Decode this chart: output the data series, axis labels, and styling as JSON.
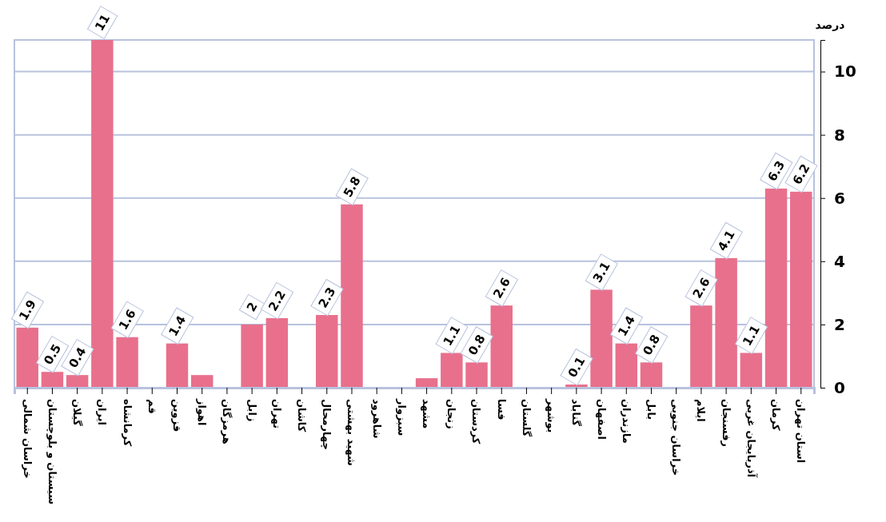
{
  "chart_data": {
    "type": "bar",
    "ylabel": "درصد",
    "categories": [
      "خراسان شمالی",
      "سیستان و بلوچستان",
      "گیلان",
      "ایران",
      "کرمانشاه",
      "قم",
      "قزوین",
      "اهواز",
      "هرمزگان",
      "زابل",
      "تهران",
      "کاشان",
      "چهارمحال",
      "شهید بهشتی",
      "شاهرود",
      "سبزوار",
      "مشهد",
      "زنجان",
      "کردستان",
      "فسا",
      "گلستان",
      "بوشهر",
      "گناباد",
      "اصفهان",
      "مازندران",
      "بابل",
      "خراسان جنوبی",
      "ایلام",
      "رفسنجان",
      "آذربایجان غربی",
      "کرمان",
      "استان تهران"
    ],
    "values": [
      1.9,
      0.5,
      0.4,
      11,
      1.6,
      0,
      1.4,
      0.4,
      0,
      2,
      2.2,
      0,
      2.3,
      5.8,
      0,
      0,
      0.3,
      1.1,
      0.8,
      2.6,
      0,
      0,
      0.1,
      3.1,
      1.4,
      0.8,
      0,
      2.6,
      4.1,
      1.1,
      6.3,
      6.2
    ],
    "value_labels": [
      "1.9",
      "0.5",
      "0.4",
      "11",
      "1.6",
      null,
      "1.4",
      null,
      null,
      "2",
      "2.2",
      null,
      "2.3",
      "5.8",
      null,
      null,
      null,
      "1.1",
      "0.8",
      "2.6",
      null,
      null,
      "0.1",
      "3.1",
      "1.4",
      "0.8",
      null,
      "2.6",
      "4.1",
      "1.1",
      "6.3",
      "6.2"
    ],
    "color": "#e8708c",
    "ylim": [
      0,
      11
    ],
    "yticks": [
      0,
      2,
      4,
      6,
      8,
      10
    ],
    "grid": "y"
  }
}
